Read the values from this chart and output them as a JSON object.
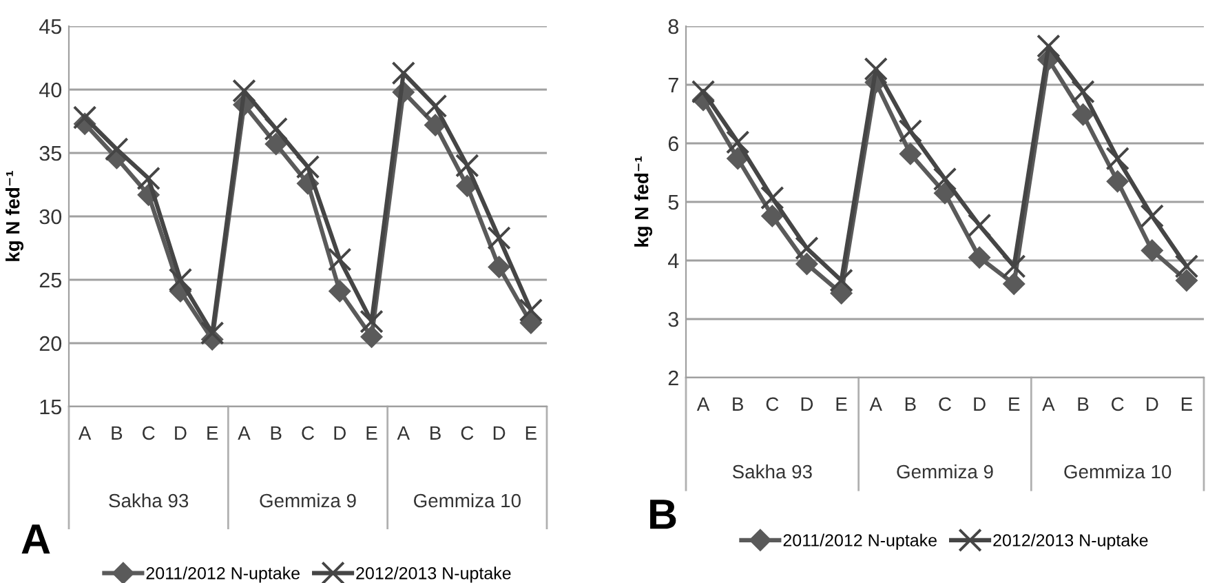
{
  "chart_data": [
    {
      "type": "line",
      "title": "A",
      "ylabel": "kg N fed⁻¹",
      "categories": [
        "A",
        "B",
        "C",
        "D",
        "E",
        "A",
        "B",
        "C",
        "D",
        "E",
        "A",
        "B",
        "C",
        "D",
        "E"
      ],
      "annotations": [
        "Sakha 93",
        "Gemmiza 9",
        "Gemmiza 10"
      ],
      "ylim": [
        15,
        45
      ],
      "yticks": [
        15,
        20,
        25,
        30,
        35,
        40,
        45
      ],
      "grid": "y",
      "legend": "bottom",
      "series": [
        {
          "name": "2011/2012 N-uptake",
          "color": "#5a5a5a",
          "marker": "diamond",
          "values": [
            37.3,
            34.6,
            31.7,
            24.1,
            20.3,
            38.8,
            35.7,
            32.6,
            24.1,
            20.5,
            39.8,
            37.2,
            32.4,
            26.0,
            21.6
          ]
        },
        {
          "name": "2012/2013 N-uptake",
          "color": "#454545",
          "marker": "cross",
          "values": [
            37.8,
            35.3,
            33.0,
            25.0,
            20.8,
            39.9,
            36.9,
            33.9,
            26.6,
            21.7,
            41.3,
            38.7,
            34.0,
            28.3,
            22.6
          ]
        }
      ]
    },
    {
      "type": "line",
      "title": "B",
      "ylabel": "kg N fed⁻¹",
      "categories": [
        "A",
        "B",
        "C",
        "D",
        "E",
        "A",
        "B",
        "C",
        "D",
        "E",
        "A",
        "B",
        "C",
        "D",
        "E"
      ],
      "annotations": [
        "Sakha 93",
        "Gemmiza 9",
        "Gemmiza 10"
      ],
      "ylim": [
        2,
        8
      ],
      "yticks": [
        2,
        3,
        4,
        5,
        6,
        7,
        8
      ],
      "grid": "y",
      "legend": "bottom",
      "series": [
        {
          "name": "2011/2012 N-uptake",
          "color": "#5a5a5a",
          "marker": "diamond",
          "values": [
            6.74,
            5.74,
            4.76,
            3.94,
            3.44,
            7.04,
            5.82,
            5.15,
            4.05,
            3.6,
            7.43,
            6.49,
            5.35,
            4.17,
            3.66
          ]
        },
        {
          "name": "2012/2013 N-uptake",
          "color": "#454545",
          "marker": "cross",
          "values": [
            6.88,
            6.02,
            5.07,
            4.21,
            3.66,
            7.27,
            6.21,
            5.39,
            4.6,
            3.9,
            7.66,
            6.88,
            5.74,
            4.76,
            3.9
          ]
        }
      ]
    }
  ]
}
